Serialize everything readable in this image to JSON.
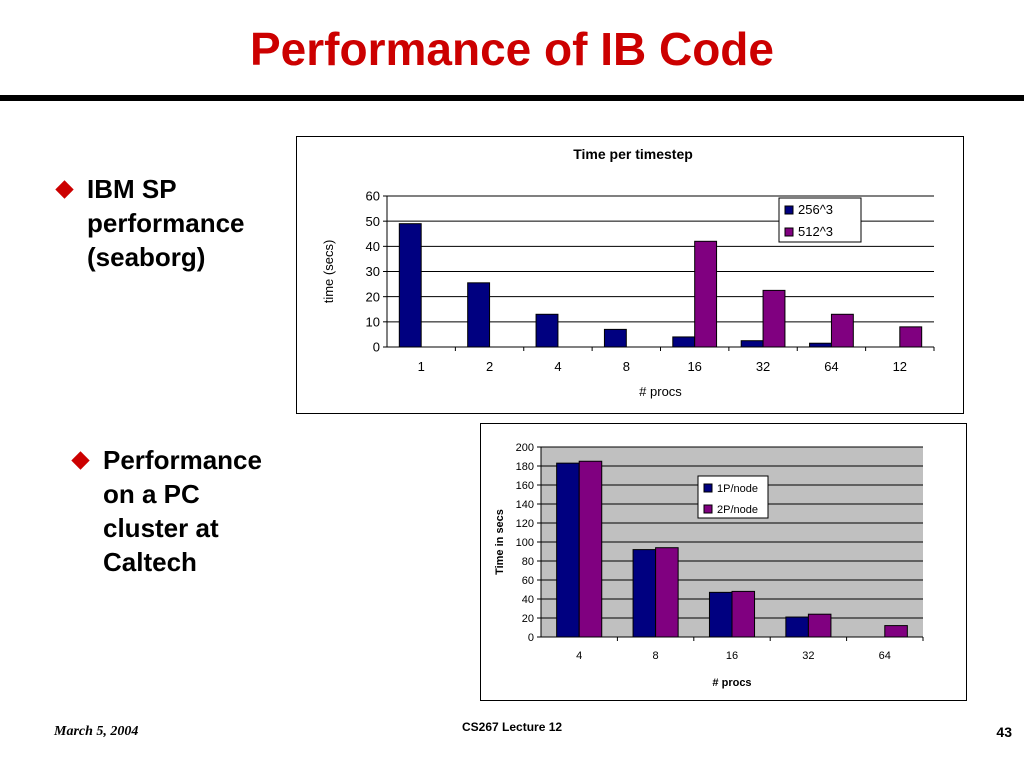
{
  "slide": {
    "title": "Performance of IB Code",
    "bullets": [
      "IBM SP\nperformance\n(seaborg)",
      "Performance\non a PC\ncluster at\nCaltech"
    ],
    "footer_date": "March 5, 2004",
    "footer_center": "CS267 Lecture 12",
    "page_number": "43",
    "title_color": "#cc0000"
  },
  "chart_data": [
    {
      "type": "bar",
      "title": "Time per timestep",
      "xlabel": "# procs",
      "ylabel": "time (secs)",
      "categories": [
        "1",
        "2",
        "4",
        "8",
        "16",
        "32",
        "64",
        "12"
      ],
      "ylim": [
        0,
        60
      ],
      "yticks": [
        0,
        10,
        20,
        30,
        40,
        50,
        60
      ],
      "grid": true,
      "legend": "top-right",
      "series": [
        {
          "name": "256^3",
          "color": "#000080",
          "values": [
            49,
            25.5,
            13,
            7,
            4,
            2.5,
            1.5,
            null
          ]
        },
        {
          "name": "512^3",
          "color": "#800080",
          "values": [
            null,
            null,
            null,
            null,
            42,
            22.5,
            13,
            8
          ]
        }
      ]
    },
    {
      "type": "bar",
      "title": "",
      "xlabel": "# procs",
      "ylabel": "Time in secs",
      "categories": [
        "4",
        "8",
        "16",
        "32",
        "64"
      ],
      "ylim": [
        0,
        200
      ],
      "yticks": [
        0,
        20,
        40,
        60,
        80,
        100,
        120,
        140,
        160,
        180,
        200
      ],
      "grid": true,
      "legend": "top-right",
      "plot_background": "#c0c0c0",
      "series": [
        {
          "name": "1P/node",
          "color": "#000080",
          "values": [
            183,
            92,
            47,
            21,
            null
          ]
        },
        {
          "name": "2P/node",
          "color": "#800080",
          "values": [
            185,
            94,
            48,
            24,
            12
          ]
        }
      ]
    }
  ]
}
